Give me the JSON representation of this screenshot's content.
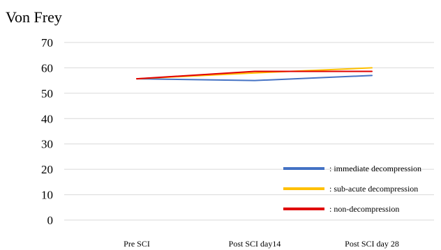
{
  "chart_data": {
    "type": "line",
    "title": "Von Frey",
    "xlabel": "",
    "ylabel": "",
    "categories": [
      "Pre SCI",
      "Post SCI day14",
      "Post SCI day 28"
    ],
    "ylim": [
      0,
      70
    ],
    "yticks": [
      0,
      10,
      20,
      30,
      40,
      50,
      60,
      70
    ],
    "grid": true,
    "legend_position": "bottom-right",
    "series": [
      {
        "name": ": immediate decompression",
        "color": "#4472C4",
        "values": [
          55.7,
          55.0,
          57.0
        ]
      },
      {
        "name": ": sub-acute decompression",
        "color": "#FFC000",
        "values": [
          55.7,
          58.0,
          60.0
        ]
      },
      {
        "name": ": non-decompression",
        "color": "#E00000",
        "values": [
          55.7,
          58.6,
          58.6
        ]
      }
    ]
  }
}
